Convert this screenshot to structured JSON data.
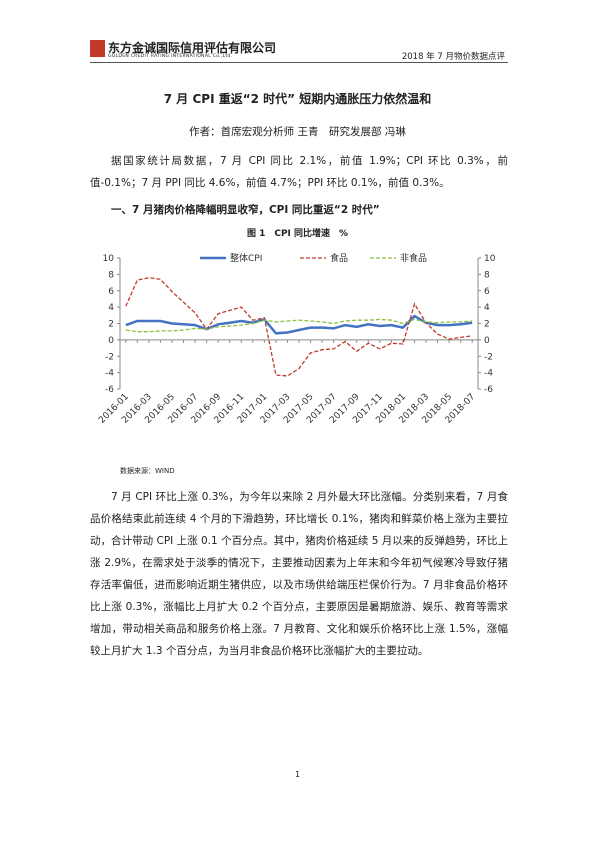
{
  "header": {
    "company": "东方金诚国际信用评估有限公司",
    "company_en": "GOLDEN CREDIT RATING INTERNATIONAL Co.,Ltd.",
    "doc": "2018 年 7 月物价数据点评"
  },
  "title": "7 月 CPI 重返“2 时代” 短期内通胀压力依然温和",
  "author": "作者：首席宏观分析师 王青　研究发展部 冯琳",
  "paragraphs": [
    "据国家统计局数据，7 月 CPI 同比 2.1%，前值 1.9%；CPI 环比 0.3%，前值-0.1%；7 月 PPI 同比 4.6%，前值 4.7%；PPI 环比 0.1%，前值 0.3%。",
    "7 月 CPI 环比上涨 0.3%，为今年以来除 2 月外最大环比涨幅。分类别来看，7 月食品价格结束此前连续 4 个月的下滑趋势，环比增长 0.1%，猪肉和鲜菜价格上涨为主要拉动，合计带动 CPI 上涨 0.1 个百分点。其中，猪肉价格延续 5 月以来的反弹趋势，环比上涨 2.9%，在需求处于淡季的情况下，主要推动因素为上年末和今年初气候寒冷导致仔猪存活率偏低，进而影响近期生猪供应，以及市场供给端压栏保价行为。7 月非食品价格环比上涨 0.3%，涨幅比上月扩大 0.2 个百分点，主要原因是暑期旅游、娱乐、教育等需求增加，带动相关商品和服务价格上涨。7 月教育、文化和娱乐价格环比上涨 1.5%，涨幅较上月扩大 1.3 个百分点，为当月非食品价格环比涨幅扩大的主要拉动。"
  ],
  "heading": "一、7 月猪肉价格降幅明显收窄，CPI 同比重返“2 时代”",
  "caption": "图 1　CPI 同比增速　%",
  "chart_data": {
    "type": "line",
    "categories": [
      "2016-01",
      null,
      "2016-03",
      null,
      "2016-05",
      null,
      "2016-07",
      null,
      "2016-09",
      null,
      "2016-11",
      null,
      "2017-01",
      null,
      "2017-03",
      null,
      "2017-05",
      null,
      "2017-07",
      null,
      "2017-09",
      null,
      "2017-11",
      null,
      "2018-01",
      null,
      "2018-03",
      null,
      "2018-05",
      null,
      "2018-07"
    ],
    "series": [
      {
        "name": "整体CPI",
        "color": "#4472c4",
        "line_style": "solid",
        "values": [
          1.8,
          2.3,
          2.3,
          2.3,
          2.0,
          1.9,
          1.8,
          1.3,
          1.9,
          2.1,
          2.3,
          2.1,
          2.5,
          0.8,
          0.9,
          1.2,
          1.5,
          1.5,
          1.4,
          1.8,
          1.6,
          1.9,
          1.7,
          1.8,
          1.5,
          2.9,
          2.1,
          1.8,
          1.8,
          1.9,
          2.1
        ]
      },
      {
        "name": "食品",
        "color": "#c0392b",
        "line_style": "dashed",
        "values": [
          4.1,
          7.3,
          7.6,
          7.4,
          5.9,
          4.6,
          3.3,
          1.3,
          3.2,
          3.6,
          4.0,
          2.4,
          2.7,
          -4.3,
          -4.4,
          -3.5,
          -1.6,
          -1.2,
          -1.1,
          -0.2,
          -1.4,
          -0.4,
          -1.1,
          -0.4,
          -0.5,
          4.4,
          2.1,
          0.7,
          0.1,
          0.3,
          0.5
        ]
      },
      {
        "name": "非食品",
        "color": "#8fbf3f",
        "line_style": "dashed",
        "values": [
          1.2,
          1.0,
          1.0,
          1.1,
          1.1,
          1.2,
          1.4,
          1.3,
          1.6,
          1.7,
          1.8,
          2.0,
          2.4,
          2.2,
          2.3,
          2.4,
          2.3,
          2.2,
          2.0,
          2.3,
          2.4,
          2.4,
          2.5,
          2.4,
          2.0,
          2.5,
          2.2,
          2.1,
          2.2,
          2.2,
          2.3
        ]
      }
    ],
    "ylim": [
      -6,
      10
    ],
    "yticks": [
      -6,
      -4,
      -2,
      0,
      2,
      4,
      6,
      8,
      10
    ],
    "y2lim": [
      -6,
      10
    ],
    "y2ticks": [
      -6,
      -4,
      -2,
      0,
      2,
      4,
      6,
      8,
      10
    ],
    "legend": "top"
  },
  "source": "数据来源：WIND",
  "page_number": "1"
}
